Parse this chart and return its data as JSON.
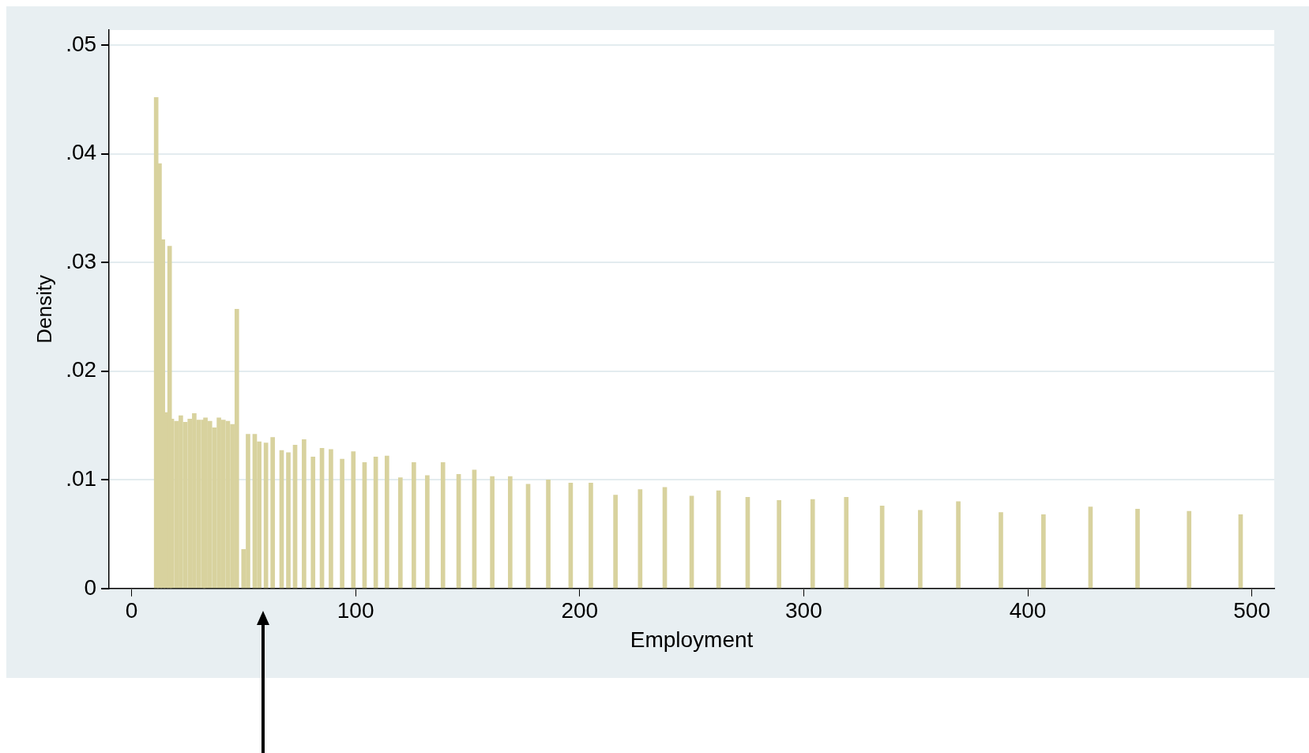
{
  "chart_data": {
    "type": "bar",
    "xlabel": "Employment",
    "ylabel": "Density",
    "x": [
      11,
      12.5,
      14,
      15.5,
      17,
      18,
      20,
      22,
      24,
      26,
      28,
      30,
      32,
      33,
      35,
      37,
      39,
      41,
      43,
      45,
      47,
      50,
      52,
      55,
      57,
      60,
      63,
      67,
      70,
      73,
      77,
      81,
      85,
      89,
      94,
      99,
      104,
      109,
      114,
      120,
      126,
      132,
      139,
      146,
      153,
      161,
      169,
      177,
      186,
      196,
      205,
      216,
      227,
      238,
      250,
      262,
      275,
      289,
      304,
      319,
      335,
      352,
      369,
      388,
      407,
      428,
      449,
      472,
      495
    ],
    "values": [
      0.0452,
      0.0391,
      0.0321,
      0.0162,
      0.0315,
      0.0156,
      0.0154,
      0.0159,
      0.0153,
      0.0156,
      0.0161,
      0.0155,
      0.0155,
      0.0157,
      0.0154,
      0.0148,
      0.0157,
      0.0155,
      0.0154,
      0.0151,
      0.0257,
      0.0036,
      0.0142,
      0.0142,
      0.0135,
      0.0134,
      0.0139,
      0.0127,
      0.0125,
      0.0132,
      0.0137,
      0.0121,
      0.0129,
      0.0128,
      0.0119,
      0.0126,
      0.0116,
      0.0121,
      0.0122,
      0.0102,
      0.0116,
      0.0104,
      0.0116,
      0.0105,
      0.0109,
      0.0103,
      0.0103,
      0.0096,
      0.01,
      0.0097,
      0.0097,
      0.0086,
      0.0091,
      0.0093,
      0.0085,
      0.009,
      0.0084,
      0.0081,
      0.0082,
      0.0084,
      0.0076,
      0.0072,
      0.008,
      0.007,
      0.0068,
      0.0075,
      0.0073,
      0.0071,
      0.0068
    ],
    "color": "#d8d29e",
    "xlim": [
      -10,
      510
    ],
    "xticks": [
      0,
      100,
      200,
      300,
      400,
      500
    ],
    "ylim": [
      0,
      0.0514
    ],
    "yticks": [
      0,
      {
        "value": 0.01,
        "label": ".01"
      },
      {
        "value": 0.02,
        "label": ".02"
      },
      {
        "value": 0.03,
        "label": ".03"
      },
      {
        "value": 0.04,
        "label": ".04"
      },
      {
        "value": 0.05,
        "label": ".05"
      }
    ],
    "grid": "y"
  }
}
